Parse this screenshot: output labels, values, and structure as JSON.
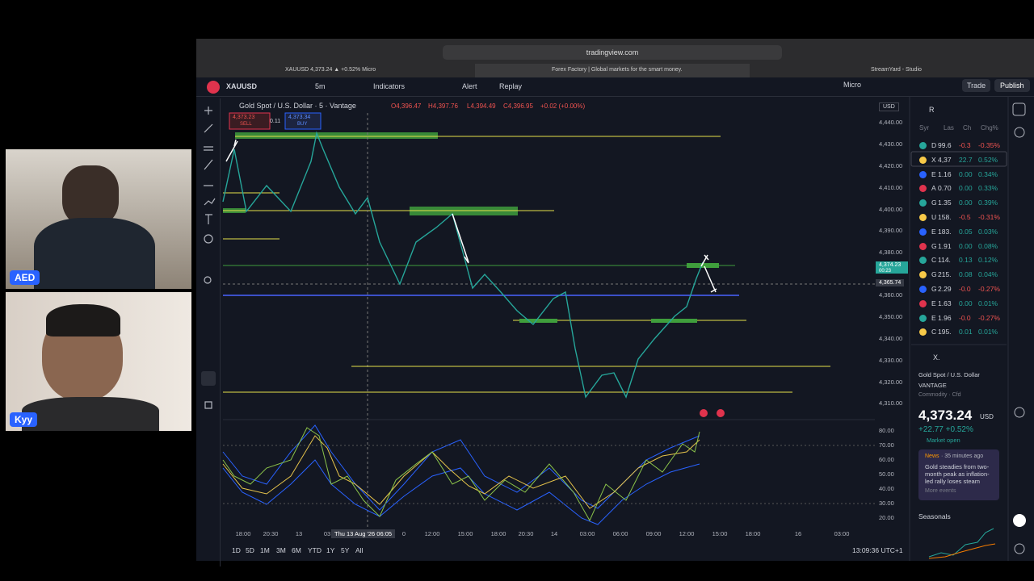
{
  "video": {
    "participants": [
      "AED",
      "Kyy"
    ]
  },
  "browser": {
    "url": "tradingview.com",
    "tabs": [
      "XAUUSD 4,373.24 ▲ +0.52% Micro",
      "Forex Factory | Global markets for the smart money.",
      "StreamYard - Studio"
    ]
  },
  "toolbar": {
    "symbol": "XAUUSD",
    "interval": "5m",
    "indicators": "Indicators",
    "alert": "Alert",
    "replay": "Replay",
    "account": "Micro",
    "trade": "Trade",
    "publish": "Publish"
  },
  "chart": {
    "title": "Gold Spot / U.S. Dollar · 5 · Vantage",
    "ohlc": [
      "O4,396.47",
      "H4,397.76",
      "L4,394.49",
      "C4,396.95",
      "+0.02 (+0.00%)"
    ],
    "sell_price": "4,373.23",
    "sell": "SELL",
    "spread": "0.11",
    "buy_price": "4,373.34",
    "buy": "BUY",
    "currency": "USD",
    "price_axis": [
      "4,440.00",
      "4,430.00",
      "4,420.00",
      "4,410.00",
      "4,400.00",
      "4,390.00",
      "4,380.00",
      "4,360.00",
      "4,350.00",
      "4,340.00",
      "4,330.00",
      "4,320.00",
      "4,310.00"
    ],
    "last_price": "4,374.23",
    "countdown": "00:23",
    "cursor_price": "4,365.74",
    "osc_axis": [
      "80.00",
      "70.00",
      "60.00",
      "50.00",
      "40.00",
      "30.00",
      "20.00"
    ],
    "time_axis": [
      "18:00",
      "20:30",
      "13",
      "03",
      "0",
      "12:00",
      "15:00",
      "18:00",
      "20:30",
      "14",
      "03:00",
      "06:00",
      "09:00",
      "12:00",
      "15:00",
      "18:00",
      "16",
      "03:00"
    ],
    "crosshair_time": "Thu 13 Aug '26  06:05",
    "ranges": [
      "1D",
      "5D",
      "1M",
      "3M",
      "6M",
      "YTD",
      "1Y",
      "5Y",
      "All"
    ],
    "clock": "13:09:36 UTC+1"
  },
  "watchlist": {
    "title": "R",
    "columns": [
      "Syr",
      "Las",
      "Ch",
      "Chg%"
    ],
    "rows": [
      [
        "D",
        "99.6",
        "-0.3",
        "-0.35%"
      ],
      [
        "X",
        "4,37",
        "22.7",
        "0.52%"
      ],
      [
        "E",
        "1.16",
        "0.00",
        "0.34%"
      ],
      [
        "A",
        "0.70",
        "0.00",
        "0.33%"
      ],
      [
        "G",
        "1.35",
        "0.00",
        "0.39%"
      ],
      [
        "U",
        "158.",
        "-0.5",
        "-0.31%"
      ],
      [
        "E",
        "183.",
        "0.05",
        "0.03%"
      ],
      [
        "G",
        "1.91",
        "0.00",
        "0.08%"
      ],
      [
        "C",
        "114.",
        "0.13",
        "0.12%"
      ],
      [
        "G",
        "215.",
        "0.08",
        "0.04%"
      ],
      [
        "G",
        "2.29",
        "-0.0",
        "-0.27%"
      ],
      [
        "E",
        "1.63",
        "0.00",
        "0.01%"
      ],
      [
        "E",
        "1.96",
        "-0.0",
        "-0.27%"
      ],
      [
        "C",
        "195.",
        "0.01",
        "0.01%"
      ]
    ]
  },
  "details": {
    "symbol": "X.",
    "name": "Gold Spot / U.S. Dollar",
    "exchange": "VANTAGE",
    "kind": "Commodity · Cfd",
    "price": "4,373.24",
    "currency": "USD",
    "change": "+22.77  +0.52%",
    "status": "Market open",
    "news_tag": "News",
    "news_time": "· 35 minutes ago",
    "news_text": "Gold steadies from two-month peak as inflation-led rally loses steam",
    "more": "More events",
    "seasonals": "Seasonals"
  }
}
